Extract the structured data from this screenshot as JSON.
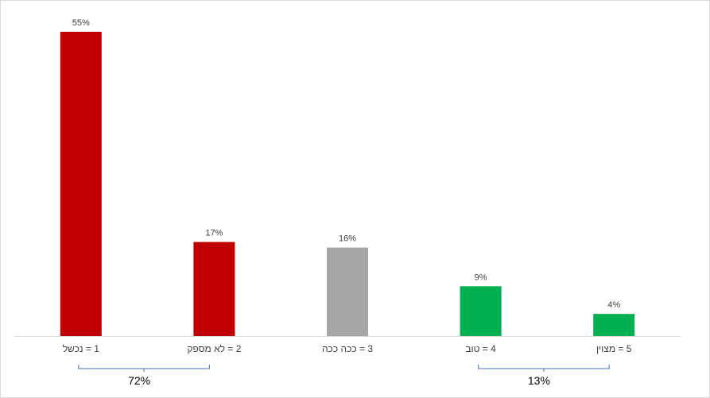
{
  "chart_data": {
    "type": "bar",
    "categories": [
      "1 = נכשל",
      "2 = לא מספק",
      "3 = ככה ככה",
      "4 = טוב",
      "5 = מצוין"
    ],
    "values": [
      55,
      17,
      16,
      9,
      4
    ],
    "data_labels": [
      "55%",
      "17%",
      "16%",
      "9%",
      "4%"
    ],
    "bar_colors": [
      "#c00000",
      "#c00000",
      "#a6a6a6",
      "#00b050",
      "#00b050"
    ],
    "ylim": [
      0,
      55
    ],
    "grid": false,
    "legend": "none",
    "groups": [
      {
        "from": 0,
        "to": 1,
        "label": "72%"
      },
      {
        "from": 3,
        "to": 4,
        "label": "13%"
      }
    ],
    "colors": {
      "axis": "#d9d9d9",
      "bracket": "#4472c4"
    }
  }
}
